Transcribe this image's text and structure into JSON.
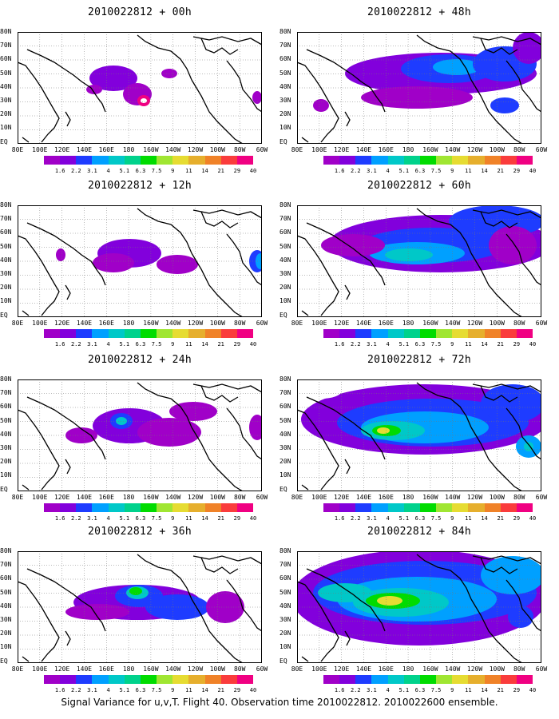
{
  "footer": "Signal Variance for u,v,T. Flight 40. Observation time 2010022812. 2010022600 ensemble.",
  "panels": [
    {
      "title": "2010022812 + 00h",
      "level": 0
    },
    {
      "title": "2010022812 + 12h",
      "level": 1
    },
    {
      "title": "2010022812 + 24h",
      "level": 2
    },
    {
      "title": "2010022812 + 36h",
      "level": 3
    },
    {
      "title": "2010022812 + 48h",
      "level": 4
    },
    {
      "title": "2010022812 + 60h",
      "level": 5
    },
    {
      "title": "2010022812 + 72h",
      "level": 6
    },
    {
      "title": "2010022812 + 84h",
      "level": 7
    }
  ],
  "lat_labels": [
    "80N",
    "70N",
    "60N",
    "50N",
    "40N",
    "30N",
    "20N",
    "10N",
    "EQ"
  ],
  "lon_labels": [
    "80E",
    "100E",
    "120E",
    "140E",
    "160E",
    "180",
    "160W",
    "140W",
    "120W",
    "100W",
    "80W",
    "60W"
  ],
  "colorbar": {
    "labels": [
      "1.6",
      "2.2",
      "3.1",
      "4",
      "5.1",
      "6.3",
      "7.5",
      "9",
      "11",
      "14",
      "21",
      "29",
      "40"
    ],
    "colors": [
      "#a000c8",
      "#8200dc",
      "#1e3cff",
      "#00a0ff",
      "#00c8c8",
      "#00d28c",
      "#00dc00",
      "#a0e632",
      "#e6dc32",
      "#e6af2d",
      "#f08228",
      "#fa3c3c",
      "#f00082"
    ]
  }
}
